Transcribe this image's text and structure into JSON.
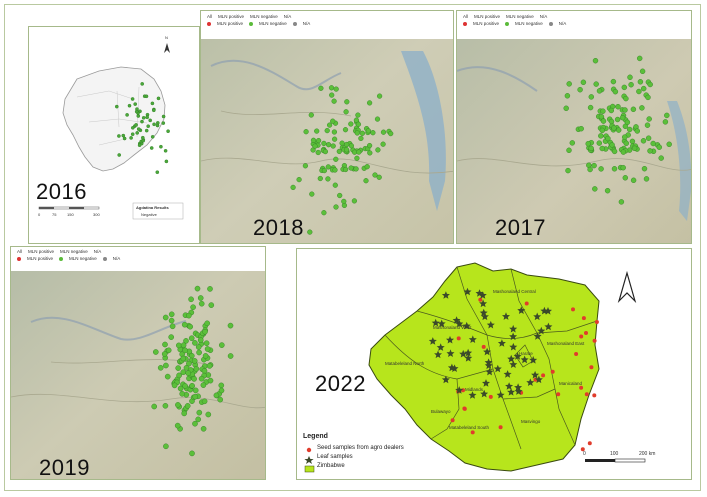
{
  "panels": {
    "p2016": {
      "year": "2016",
      "north": "N",
      "scale_ticks": [
        "0",
        "75",
        "150",
        "300"
      ],
      "legend_title": "Agdatina Results",
      "legend_item": "Negative"
    },
    "p2018": {
      "year": "2018",
      "legend": {
        "row1": [
          "All",
          "MLN positive",
          "MLN negative",
          "N/A"
        ],
        "row2": [
          "MLN positive",
          "MLN negative",
          "N/A"
        ]
      }
    },
    "p2017": {
      "year": "2017",
      "legend": {
        "row1": [
          "All",
          "MLN positive",
          "MLN negative",
          "N/A"
        ],
        "row2": [
          "MLN positive",
          "MLN negative",
          "N/A"
        ]
      }
    },
    "p2019": {
      "year": "2019",
      "legend": {
        "row1": [
          "All",
          "MLN positive",
          "MLN negative",
          "N/A"
        ],
        "row2": [
          "MLN positive",
          "MLN negative",
          "N/A"
        ]
      }
    },
    "p2022": {
      "year": "2022",
      "legend_title": "Legend",
      "legend_items": [
        "Seed samples from agro dealers",
        "Leaf samples",
        "Zimbabwe"
      ],
      "scale_labels": [
        "0",
        "100",
        "200 km"
      ],
      "provinces": [
        "Mashonaland West",
        "Mashonaland Central",
        "Mashonaland East",
        "Harare",
        "Manicaland",
        "Midlands",
        "Masvingo",
        "Matabeleland North",
        "Matabeleland South",
        "Bulawayo"
      ]
    }
  },
  "colors": {
    "green_point": "#5bbf3a",
    "zimbabwe_fill": "#b7e51c",
    "seed_dot": "#e03c2c",
    "leaf_star": "#3b4a2a"
  }
}
